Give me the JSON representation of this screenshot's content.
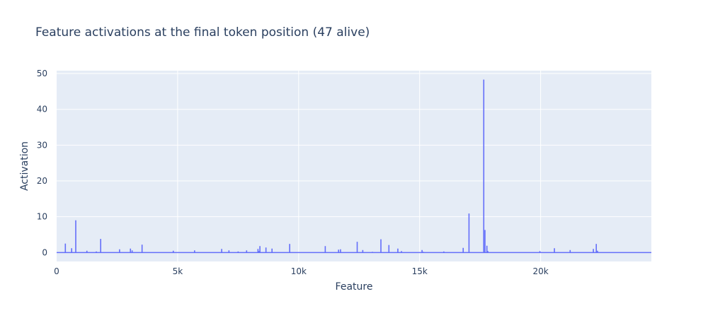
{
  "chart_data": {
    "type": "line",
    "title": "Feature activations at the final token position (47 alive)",
    "xlabel": "Feature",
    "ylabel": "Activation",
    "xlim": [
      0,
      24576
    ],
    "ylim": [
      -2.5,
      50.8
    ],
    "x_ticks": [
      0,
      5000,
      10000,
      15000,
      20000
    ],
    "x_tick_labels": [
      "0",
      "5k",
      "10k",
      "15k",
      "20k"
    ],
    "y_ticks": [
      0,
      10,
      20,
      30,
      40,
      50
    ],
    "y_tick_labels": [
      "0",
      "10",
      "20",
      "30",
      "40",
      "50"
    ],
    "grid": true,
    "series_color": "#636efa",
    "plot_bg": "#e5ecf6",
    "grid_color": "#ffffff",
    "text_color": "#2a3f5f",
    "spikes": [
      {
        "x": 360,
        "y": 2.5
      },
      {
        "x": 620,
        "y": 1.2
      },
      {
        "x": 790,
        "y": 9.0
      },
      {
        "x": 1250,
        "y": 0.5
      },
      {
        "x": 1640,
        "y": 0.3
      },
      {
        "x": 1820,
        "y": 3.8
      },
      {
        "x": 2600,
        "y": 0.9
      },
      {
        "x": 3050,
        "y": 1.1
      },
      {
        "x": 3120,
        "y": 0.6
      },
      {
        "x": 3530,
        "y": 2.2
      },
      {
        "x": 4820,
        "y": 0.5
      },
      {
        "x": 5700,
        "y": 0.6
      },
      {
        "x": 6820,
        "y": 1.0
      },
      {
        "x": 7120,
        "y": 0.6
      },
      {
        "x": 7500,
        "y": 0.3
      },
      {
        "x": 7850,
        "y": 0.6
      },
      {
        "x": 8320,
        "y": 1.0
      },
      {
        "x": 8400,
        "y": 1.8
      },
      {
        "x": 8650,
        "y": 1.4
      },
      {
        "x": 8900,
        "y": 1.1
      },
      {
        "x": 9630,
        "y": 2.4
      },
      {
        "x": 11100,
        "y": 1.8
      },
      {
        "x": 11650,
        "y": 0.8
      },
      {
        "x": 11730,
        "y": 0.9
      },
      {
        "x": 12420,
        "y": 3.0
      },
      {
        "x": 12650,
        "y": 0.7
      },
      {
        "x": 13050,
        "y": 0.2
      },
      {
        "x": 13400,
        "y": 3.7
      },
      {
        "x": 13730,
        "y": 2.1
      },
      {
        "x": 14100,
        "y": 1.1
      },
      {
        "x": 14250,
        "y": 0.4
      },
      {
        "x": 15100,
        "y": 0.7
      },
      {
        "x": 16000,
        "y": 0.3
      },
      {
        "x": 16800,
        "y": 1.3
      },
      {
        "x": 17040,
        "y": 10.9
      },
      {
        "x": 17650,
        "y": 48.3
      },
      {
        "x": 17700,
        "y": 6.3
      },
      {
        "x": 17780,
        "y": 1.9
      },
      {
        "x": 17820,
        "y": 0.4
      },
      {
        "x": 19970,
        "y": 0.4
      },
      {
        "x": 20570,
        "y": 1.2
      },
      {
        "x": 21220,
        "y": 0.7
      },
      {
        "x": 22180,
        "y": 1.0
      },
      {
        "x": 22300,
        "y": 2.4
      },
      {
        "x": 22350,
        "y": 0.5
      },
      {
        "x": 8360,
        "y": 0.4
      },
      {
        "x": 15150,
        "y": 0.2
      }
    ]
  }
}
